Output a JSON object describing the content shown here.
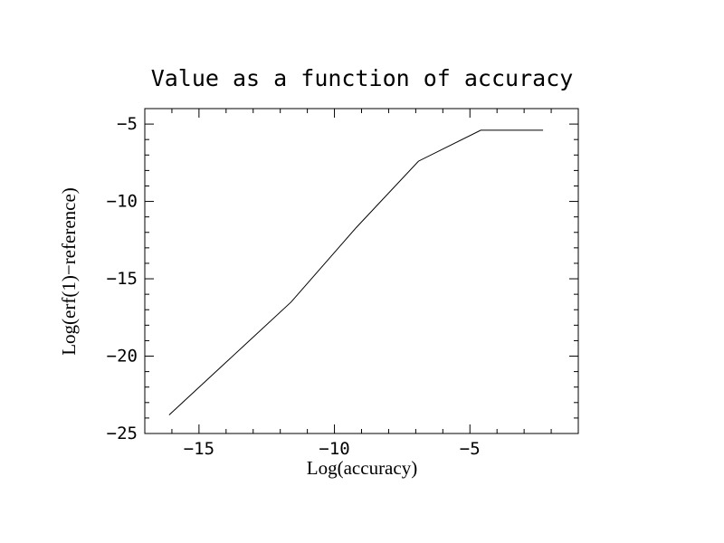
{
  "chart_data": {
    "type": "line",
    "title": "Value as a function of accuracy",
    "xlabel": "Log(accuracy)",
    "ylabel": "Log(erf(1)−reference)",
    "xlim": [
      -17,
      -1
    ],
    "ylim": [
      -25,
      -4
    ],
    "x_ticks": [
      -15,
      -10,
      -5
    ],
    "x_tick_labels": [
      "−15",
      "−10",
      "−5"
    ],
    "x_minor_step": 1,
    "y_ticks": [
      -25,
      -20,
      -15,
      -10,
      -5
    ],
    "y_tick_labels": [
      "−25",
      "−20",
      "−15",
      "−10",
      "−5"
    ],
    "y_minor_step": 1,
    "grid": false,
    "legend": "none",
    "line_color": "#000000",
    "series": [
      {
        "x": [
          -16.1,
          -11.6,
          -9.2,
          -6.9,
          -4.6,
          -2.3
        ],
        "y": [
          -23.8,
          -16.5,
          -11.7,
          -7.4,
          -5.4,
          -5.4
        ]
      }
    ]
  }
}
